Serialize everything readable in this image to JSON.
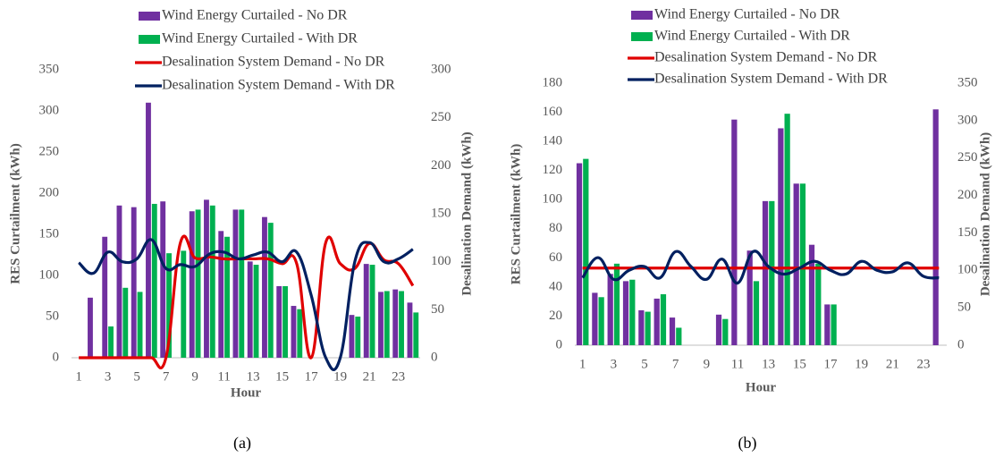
{
  "chart_data": [
    {
      "type": "bar",
      "caption": "(a)",
      "y_label": "RES Curtailment (kWh)",
      "y2_label": "Desalination Demand (kWh)",
      "x_label": "Hour",
      "categories": [
        "1",
        null,
        "3",
        null,
        "5",
        null,
        "7",
        null,
        "9",
        null,
        "11",
        null,
        "13",
        null,
        "15",
        null,
        "17",
        null,
        "19",
        null,
        "21",
        null,
        "23",
        null
      ],
      "ylim": [
        0,
        350
      ],
      "yticks": [
        0,
        50,
        100,
        150,
        200,
        250,
        300,
        350
      ],
      "y2lim": [
        0,
        300
      ],
      "y2ticks": [
        0,
        50,
        100,
        150,
        200,
        250,
        300
      ],
      "legend": "top",
      "series": [
        {
          "name": "Wind Energy Curtailed - No DR",
          "type": "bar",
          "color": "#7030a0",
          "values": [
            0,
            73,
            147,
            185,
            183,
            310,
            190,
            0,
            178,
            192,
            154,
            180,
            117,
            171,
            87,
            63,
            0,
            0,
            0,
            52,
            114,
            80,
            83,
            67
          ]
        },
        {
          "name": "Wind Energy Curtailed - With DR",
          "type": "bar",
          "color": "#00b050",
          "values": [
            0,
            0,
            38,
            85,
            80,
            187,
            127,
            130,
            180,
            185,
            147,
            180,
            113,
            164,
            87,
            59,
            0,
            0,
            0,
            50,
            113,
            81,
            81,
            55
          ]
        },
        {
          "name": "Desalination System Demand - No DR",
          "type": "line",
          "axis": "y2",
          "color": "#e00000",
          "values": [
            0,
            0,
            0,
            0,
            0,
            0,
            0,
            120,
            104,
            105,
            103,
            103,
            103,
            103,
            98,
            98,
            0,
            120,
            98,
            93,
            119,
            102,
            98,
            75
          ]
        },
        {
          "name": "Desalination System Demand - With DR",
          "type": "line",
          "axis": "y2",
          "color": "#002060",
          "values": [
            99,
            88,
            110,
            100,
            103,
            123,
            93,
            97,
            95,
            108,
            110,
            103,
            107,
            110,
            100,
            110,
            65,
            0,
            0,
            100,
            120,
            100,
            103,
            113
          ]
        }
      ]
    },
    {
      "type": "bar",
      "caption": "(b)",
      "y_label": "RES Curtailment (kWh)",
      "y2_label": "Desalination Demand (kWh)",
      "x_label": "Hour",
      "categories": [
        "1",
        null,
        "3",
        null,
        "5",
        null,
        "7",
        null,
        "9",
        null,
        "11",
        null,
        "13",
        null,
        "15",
        null,
        "17",
        null,
        "19",
        null,
        "21",
        null,
        "23",
        null
      ],
      "ylim": [
        0,
        180
      ],
      "yticks": [
        0,
        20,
        40,
        60,
        80,
        100,
        120,
        140,
        160,
        180
      ],
      "y2lim": [
        0,
        350
      ],
      "y2ticks": [
        0,
        50,
        100,
        150,
        200,
        250,
        300,
        350
      ],
      "legend": "top",
      "series": [
        {
          "name": "Wind Energy Curtailed - No DR",
          "type": "bar",
          "color": "#7030a0",
          "values": [
            125,
            36,
            49,
            44,
            24,
            32,
            19,
            0,
            0,
            21,
            155,
            65,
            99,
            149,
            111,
            69,
            28,
            0,
            0,
            0,
            0,
            0,
            0,
            162
          ]
        },
        {
          "name": "Wind Energy Curtailed - With DR",
          "type": "bar",
          "color": "#00b050",
          "values": [
            128,
            33,
            56,
            45,
            23,
            35,
            12,
            0,
            0,
            18,
            0,
            44,
            99,
            159,
            111,
            56,
            28,
            0,
            0,
            0,
            0,
            0,
            0,
            0
          ]
        },
        {
          "name": "Desalination System Demand - No DR",
          "type": "line",
          "axis": "y2",
          "color": "#e00000",
          "values": [
            103,
            103,
            103,
            103,
            103,
            103,
            103,
            103,
            103,
            103,
            103,
            103,
            103,
            103,
            103,
            103,
            103,
            103,
            103,
            103,
            103,
            103,
            103,
            103
          ]
        },
        {
          "name": "Desalination System Demand - With DR",
          "type": "line",
          "axis": "y2",
          "color": "#002060",
          "values": [
            90,
            117,
            88,
            100,
            105,
            90,
            125,
            105,
            88,
            115,
            83,
            125,
            105,
            95,
            103,
            112,
            100,
            95,
            112,
            100,
            98,
            110,
            92,
            90
          ]
        }
      ]
    }
  ]
}
